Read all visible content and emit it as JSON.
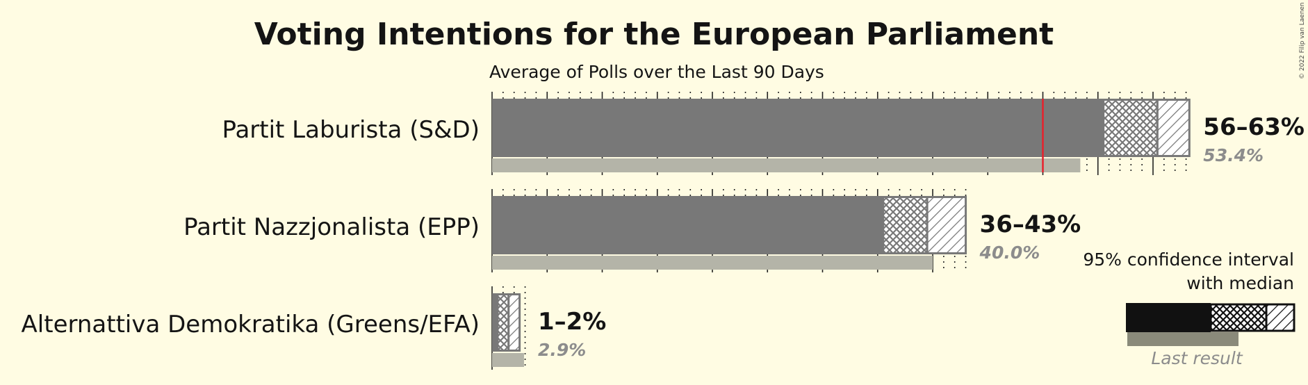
{
  "chart_data": {
    "type": "bar",
    "title": "Voting Intentions for the European Parliament",
    "subtitle": "Average of Polls over the Last 90 Days",
    "categories": [
      "Partit Laburista (S&D)",
      "Partit Nazzjonalista (EPP)",
      "Alternattiva Demokratika (Greens/EFA)"
    ],
    "series": [
      {
        "name": "95% confidence interval",
        "low": [
          55.5,
          35.5,
          0.5
        ],
        "high": [
          63.3,
          43.0,
          2.5
        ]
      },
      {
        "name": "median",
        "values": [
          60.4,
          39.5,
          1.5
        ]
      },
      {
        "name": "Last result",
        "values": [
          53.4,
          40.0,
          2.9
        ]
      }
    ],
    "range_labels": [
      "56–63%",
      "36–43%",
      "1–2%"
    ],
    "last_result_labels": [
      "53.4%",
      "40.0%",
      "2.9%"
    ],
    "threshold": 50,
    "xlim": [
      0,
      65
    ],
    "grid": true,
    "legend": {
      "position": "bottom-right",
      "line1": "95% confidence interval",
      "line2": "with median",
      "last_result": "Last result"
    },
    "copyright": "© 2022 Filip van Laenen",
    "colors": {
      "background": "#fffce3",
      "bar": "#787878",
      "last_result": "#b4b4a8",
      "threshold": "#e8202a",
      "legend_bar": "#111111",
      "legend_last": "#8a8a7a",
      "text": "#141414",
      "muted_text": "#8c8c8c"
    }
  }
}
